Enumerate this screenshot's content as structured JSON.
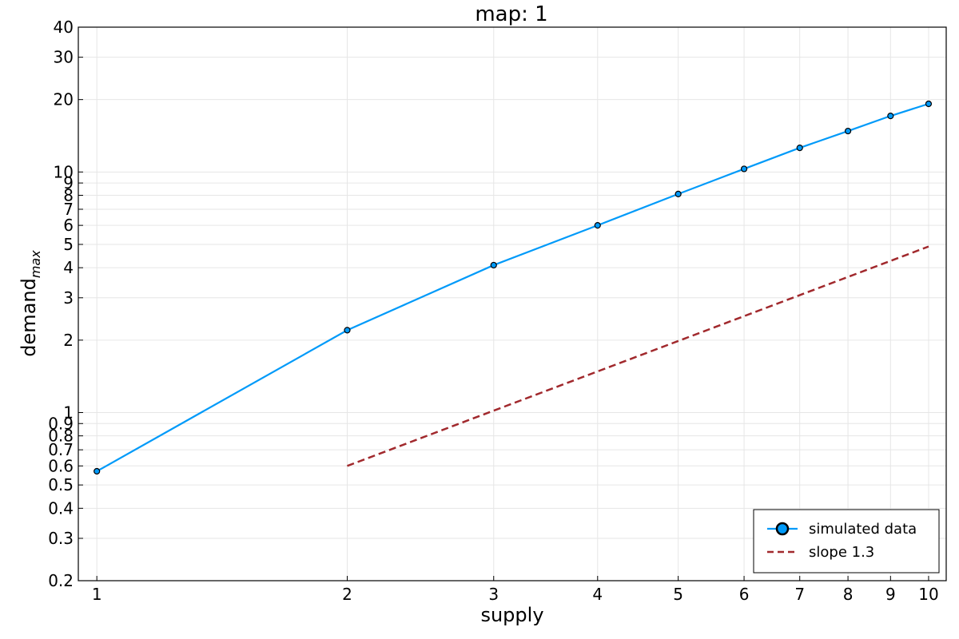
{
  "chart_data": {
    "type": "line",
    "title": "map: 1",
    "xlabel": "supply",
    "ylabel": "demand",
    "ylabel_subscript": "max",
    "x_scale": "log",
    "y_scale": "log",
    "xlim": [
      0.95,
      10.5
    ],
    "ylim": [
      0.2,
      40
    ],
    "grid": true,
    "legend_position": "bottom-right",
    "x_ticks": [
      1,
      2,
      3,
      4,
      5,
      6,
      7,
      8,
      9,
      10
    ],
    "x_tick_labels": [
      "1",
      "2",
      "3",
      "4",
      "5",
      "6",
      "7",
      "8",
      "9",
      "10"
    ],
    "y_ticks": [
      0.2,
      0.3,
      0.4,
      0.5,
      0.6,
      0.7,
      0.8,
      0.9,
      1,
      2,
      3,
      4,
      5,
      6,
      7,
      8,
      9,
      10,
      20,
      30,
      40
    ],
    "y_tick_labels": [
      "0.2",
      "0.3",
      "0.4",
      "0.5",
      "0.6",
      "0.7",
      "0.8",
      "0.9",
      "1",
      "2",
      "3",
      "4",
      "5",
      "6",
      "7",
      "8",
      "9",
      "10",
      "20",
      "30",
      "40"
    ],
    "series": [
      {
        "name": "simulated data",
        "style": "line-markers",
        "color": "#009af9",
        "x": [
          1,
          2,
          3,
          4,
          5,
          6,
          7,
          8,
          9,
          10
        ],
        "y": [
          0.57,
          2.2,
          4.1,
          6.0,
          8.1,
          10.3,
          12.6,
          14.8,
          17.1,
          19.2
        ]
      },
      {
        "name": "slope 1.3",
        "style": "dashed",
        "color": "#a1292d",
        "x": [
          2,
          10
        ],
        "y": [
          0.6,
          4.9
        ]
      }
    ]
  }
}
